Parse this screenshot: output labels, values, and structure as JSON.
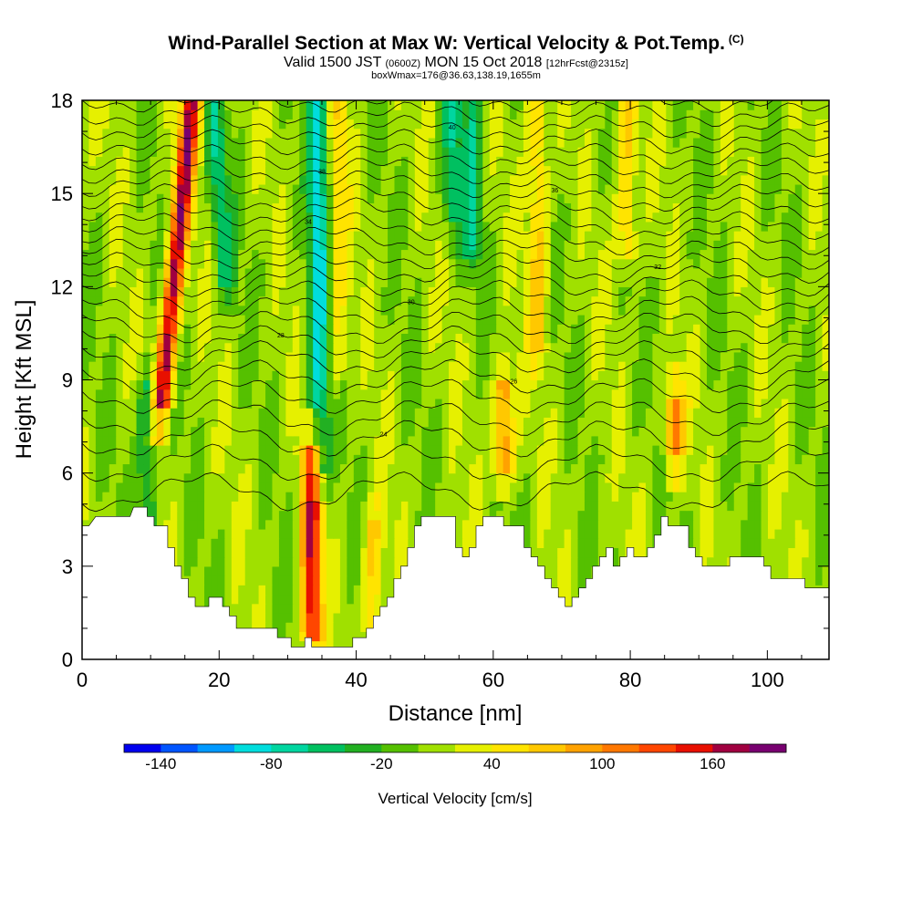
{
  "header": {
    "title": "Wind-Parallel Section at Max W: Vertical Velocity & Pot.Temp.",
    "title_suffix": "(C)",
    "valid_prefix": "Valid 1500 JST",
    "valid_utc": "(0600Z)",
    "valid_date": "MON 15 Oct 2018",
    "valid_fcst": "[12hrFcst@2315z]",
    "box_info": "boxWmax=176@36.63,138.19,1655m"
  },
  "chart_data": {
    "type": "heatmap",
    "title": "Wind-Parallel Section at Max W: Vertical Velocity & Pot.Temp.",
    "xlabel": "Distance [nm]",
    "ylabel": "Height [Kft MSL]",
    "xlim": [
      0,
      109
    ],
    "ylim": [
      0,
      18
    ],
    "x_ticks": [
      "0",
      "20",
      "40",
      "60",
      "80",
      "100"
    ],
    "x_tick_values": [
      0,
      20,
      40,
      60,
      80,
      100
    ],
    "y_ticks": [
      "0",
      "3",
      "6",
      "9",
      "12",
      "15",
      "18"
    ],
    "y_tick_values": [
      0,
      3,
      6,
      9,
      12,
      15,
      18
    ],
    "colorbar": {
      "title": "Vertical Velocity [cm/s]",
      "labels": [
        "-140",
        "-80",
        "-20",
        "40",
        "100",
        "160"
      ],
      "label_values": [
        -140,
        -80,
        -20,
        40,
        100,
        160
      ],
      "min": -160,
      "max": 200,
      "step": 20,
      "colors": [
        "#0000ee",
        "#0055ff",
        "#0099ff",
        "#00dddd",
        "#00d6a0",
        "#00c060",
        "#22b022",
        "#55c000",
        "#a0e000",
        "#e6f000",
        "#ffe400",
        "#ffc800",
        "#ffa200",
        "#ff7800",
        "#ff4600",
        "#e81000",
        "#a00040",
        "#780070"
      ]
    },
    "velocity_columns": [
      {
        "x": 11.5,
        "value": 160,
        "slant": 4.5,
        "from": 8,
        "to": 18
      },
      {
        "x": 9.5,
        "value": -60,
        "slant": 0.0,
        "from": 2.5,
        "to": 9
      },
      {
        "x": 21,
        "value": -60,
        "slant": -2.0,
        "from": 12,
        "to": 18
      },
      {
        "x": 34.5,
        "value": -90,
        "slant": 0.0,
        "from": 6,
        "to": 18
      },
      {
        "x": 33.5,
        "value": 150,
        "slant": 0.0,
        "from": 0.5,
        "to": 7
      },
      {
        "x": 37.5,
        "value": 40,
        "slant": 0.0,
        "from": 9,
        "to": 18
      },
      {
        "x": 42.5,
        "value": 60,
        "slant": 0.0,
        "from": 1,
        "to": 4.5
      },
      {
        "x": 57,
        "value": -60,
        "slant": 0.0,
        "from": 13,
        "to": 18
      },
      {
        "x": 61.5,
        "value": 100,
        "slant": 0.0,
        "from": 6,
        "to": 9
      },
      {
        "x": 66.5,
        "value": 60,
        "slant": 0.0,
        "from": 10,
        "to": 18
      },
      {
        "x": 79.5,
        "value": 60,
        "slant": 0.0,
        "from": 13,
        "to": 18
      },
      {
        "x": 86.5,
        "value": 100,
        "slant": 0.0,
        "from": 6.5,
        "to": 8.5
      },
      {
        "x": 54,
        "value": -60,
        "slant": 0.0,
        "from": 14,
        "to": 18
      }
    ],
    "terrain_top": [
      [
        0,
        4.3
      ],
      [
        1,
        4.3
      ],
      [
        2,
        4.6
      ],
      [
        7,
        4.6
      ],
      [
        7.5,
        4.9
      ],
      [
        9.5,
        4.9
      ],
      [
        9.5,
        4.6
      ],
      [
        10.5,
        4.6
      ],
      [
        10.5,
        4.3
      ],
      [
        12.5,
        4.3
      ],
      [
        12.5,
        3.6
      ],
      [
        13.5,
        3.6
      ],
      [
        13.5,
        3.0
      ],
      [
        14.5,
        3.0
      ],
      [
        14.5,
        2.6
      ],
      [
        15.5,
        2.6
      ],
      [
        15.5,
        2.0
      ],
      [
        16.5,
        2.0
      ],
      [
        16.5,
        1.7
      ],
      [
        18.5,
        1.7
      ],
      [
        18.5,
        2.0
      ],
      [
        20.5,
        2.0
      ],
      [
        20.5,
        1.7
      ],
      [
        21.5,
        1.7
      ],
      [
        21.5,
        1.4
      ],
      [
        22.5,
        1.4
      ],
      [
        22.5,
        1.0
      ],
      [
        28.5,
        1.0
      ],
      [
        28.5,
        0.7
      ],
      [
        30.5,
        0.7
      ],
      [
        30.5,
        0.4
      ],
      [
        32.5,
        0.4
      ],
      [
        32.5,
        0.7
      ],
      [
        33.5,
        0.7
      ],
      [
        33.5,
        0.4
      ],
      [
        39.5,
        0.4
      ],
      [
        39.5,
        0.7
      ],
      [
        41.5,
        0.7
      ],
      [
        41.5,
        1.0
      ],
      [
        42.5,
        1.0
      ],
      [
        42.5,
        1.4
      ],
      [
        43.5,
        1.4
      ],
      [
        43.5,
        1.7
      ],
      [
        44.5,
        1.7
      ],
      [
        44.5,
        2.0
      ],
      [
        45.5,
        2.0
      ],
      [
        45.5,
        2.6
      ],
      [
        46.5,
        2.6
      ],
      [
        46.5,
        3.0
      ],
      [
        47.5,
        3.0
      ],
      [
        47.5,
        3.6
      ],
      [
        48.5,
        3.6
      ],
      [
        48.5,
        4.3
      ],
      [
        49.5,
        4.3
      ],
      [
        49.5,
        4.6
      ],
      [
        54.5,
        4.6
      ],
      [
        54.5,
        3.6
      ],
      [
        55.5,
        3.6
      ],
      [
        55.5,
        3.3
      ],
      [
        56.5,
        3.3
      ],
      [
        56.5,
        3.6
      ],
      [
        57.5,
        3.6
      ],
      [
        57.5,
        4.3
      ],
      [
        58.5,
        4.3
      ],
      [
        58.5,
        4.6
      ],
      [
        61.5,
        4.6
      ],
      [
        61.5,
        4.3
      ],
      [
        64.5,
        4.3
      ],
      [
        64.5,
        3.6
      ],
      [
        65.5,
        3.6
      ],
      [
        65.5,
        3.3
      ],
      [
        66.5,
        3.3
      ],
      [
        66.5,
        3.0
      ],
      [
        67.5,
        3.0
      ],
      [
        67.5,
        2.6
      ],
      [
        68.5,
        2.6
      ],
      [
        68.5,
        2.3
      ],
      [
        69.5,
        2.3
      ],
      [
        69.5,
        2.0
      ],
      [
        70.5,
        2.0
      ],
      [
        70.5,
        1.7
      ],
      [
        71.5,
        1.7
      ],
      [
        71.5,
        2.0
      ],
      [
        72.5,
        2.0
      ],
      [
        72.5,
        2.3
      ],
      [
        73.5,
        2.3
      ],
      [
        73.5,
        2.6
      ],
      [
        74.5,
        2.6
      ],
      [
        74.5,
        3.0
      ],
      [
        75.5,
        3.0
      ],
      [
        75.5,
        3.3
      ],
      [
        76.5,
        3.3
      ],
      [
        76.5,
        3.6
      ],
      [
        77.5,
        3.6
      ],
      [
        77.5,
        3.0
      ],
      [
        78.5,
        3.0
      ],
      [
        78.5,
        3.3
      ],
      [
        79.5,
        3.3
      ],
      [
        79.5,
        3.6
      ],
      [
        80.5,
        3.6
      ],
      [
        80.5,
        3.3
      ],
      [
        82.5,
        3.3
      ],
      [
        82.5,
        3.6
      ],
      [
        83.5,
        3.6
      ],
      [
        83.5,
        4.0
      ],
      [
        84.5,
        4.0
      ],
      [
        84.5,
        4.6
      ],
      [
        85.5,
        4.6
      ],
      [
        85.5,
        4.3
      ],
      [
        88.5,
        4.3
      ],
      [
        88.5,
        3.6
      ],
      [
        89.5,
        3.6
      ],
      [
        89.5,
        3.3
      ],
      [
        90.5,
        3.3
      ],
      [
        90.5,
        3.0
      ],
      [
        94.5,
        3.0
      ],
      [
        94.5,
        3.3
      ],
      [
        99.5,
        3.3
      ],
      [
        99.5,
        3.0
      ],
      [
        100.5,
        3.0
      ],
      [
        100.5,
        2.6
      ],
      [
        105.5,
        2.6
      ],
      [
        105.5,
        2.3
      ],
      [
        109,
        2.3
      ]
    ],
    "theta_contours": [
      {
        "label": "30",
        "base": 18.0
      },
      {
        "label": "",
        "base": 17.55
      },
      {
        "label": "40",
        "base": 17.1
      },
      {
        "label": "",
        "base": 16.65
      },
      {
        "label": "",
        "base": 16.2
      },
      {
        "label": "38",
        "base": 15.75
      },
      {
        "label": "",
        "base": 15.3
      },
      {
        "label": "36",
        "base": 14.85
      },
      {
        "label": "",
        "base": 14.4
      },
      {
        "label": "34",
        "base": 13.95
      },
      {
        "label": "",
        "base": 13.5
      },
      {
        "label": "",
        "base": 13.05
      },
      {
        "label": "32",
        "base": 12.6
      },
      {
        "label": "",
        "base": 12.15
      },
      {
        "label": "30",
        "base": 11.7
      },
      {
        "label": "",
        "base": 11.2
      },
      {
        "label": "",
        "base": 10.7
      },
      {
        "label": "28",
        "base": 10.2
      },
      {
        "label": "",
        "base": 9.7
      },
      {
        "label": "26",
        "base": 9.1
      },
      {
        "label": "",
        "base": 8.5
      },
      {
        "label": "",
        "base": 7.8
      },
      {
        "label": "24",
        "base": 7.1
      },
      {
        "label": "",
        "base": 6.3
      },
      {
        "label": "",
        "base": 5.4
      }
    ]
  }
}
